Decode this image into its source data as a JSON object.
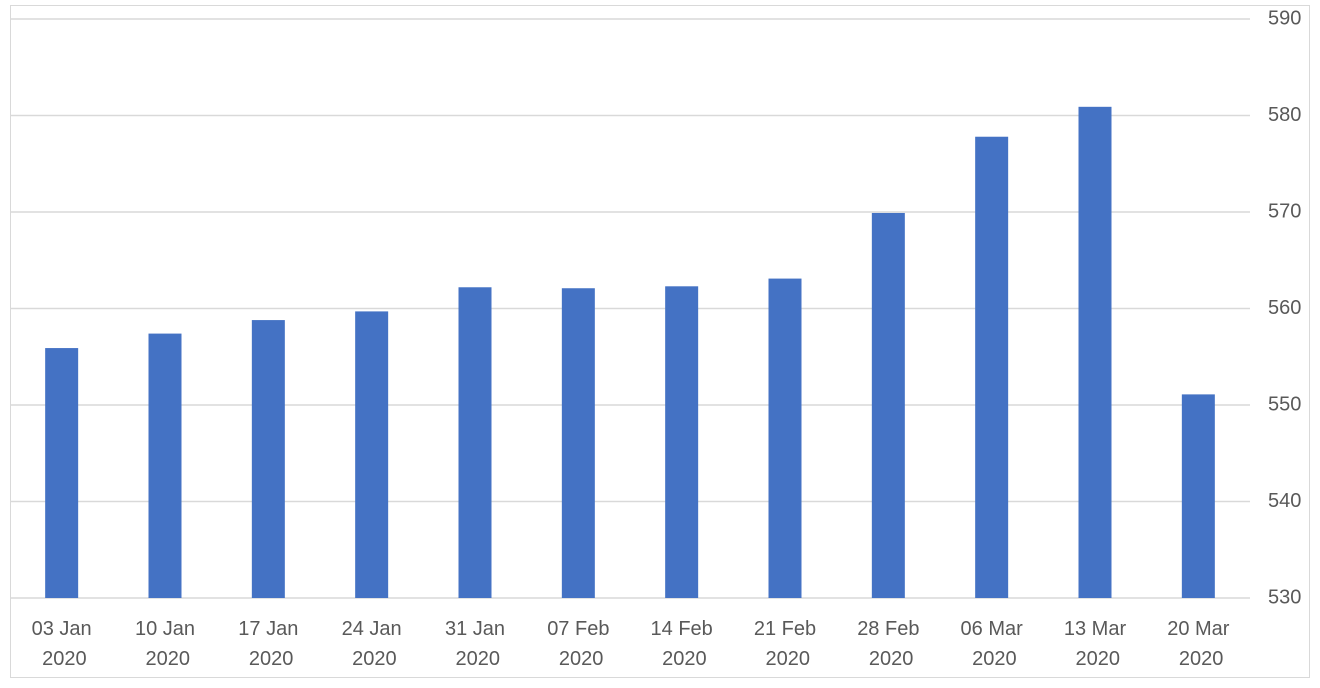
{
  "chart_data": {
    "type": "bar",
    "categories": [
      "03 Jan 2020",
      "10 Jan 2020",
      "17 Jan 2020",
      "24 Jan 2020",
      "31 Jan 2020",
      "07 Feb 2020",
      "14 Feb 2020",
      "21 Feb 2020",
      "28 Feb 2020",
      "06 Mar 2020",
      "13 Mar 2020",
      "20 Mar 2020"
    ],
    "values": [
      555.9,
      557.4,
      558.8,
      559.7,
      562.2,
      562.1,
      562.3,
      563.1,
      569.9,
      577.8,
      580.9,
      551.1
    ],
    "color": "#4472c4",
    "ylim": [
      530,
      590
    ],
    "yticks": [
      530,
      540,
      550,
      560,
      570,
      580,
      590
    ],
    "grid": true,
    "y_axis_side": "right"
  }
}
